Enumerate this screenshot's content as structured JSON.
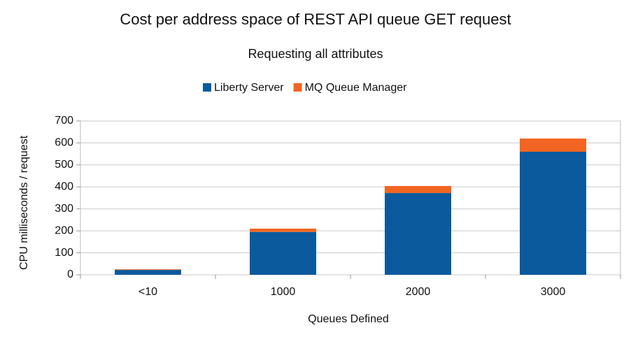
{
  "chart_data": {
    "type": "stacked_bar",
    "title": "Cost per address space of REST API queue GET request",
    "subtitle": "Requesting all attributes",
    "x_label": "Queues  Defined",
    "y_label": "CPU milliseconds / request",
    "categories": [
      "<10",
      "1000",
      "2000",
      "3000"
    ],
    "series": [
      {
        "name": "Liberty Server",
        "color": "#0b5a9e",
        "values": [
          22,
          195,
          372,
          560
        ]
      },
      {
        "name": "MQ Queue Manager",
        "color": "#f26522",
        "values": [
          3,
          15,
          32,
          60
        ]
      }
    ],
    "ylim": [
      0,
      700
    ],
    "yticks": [
      0,
      100,
      200,
      300,
      400,
      500,
      600,
      700
    ],
    "grid": true
  }
}
